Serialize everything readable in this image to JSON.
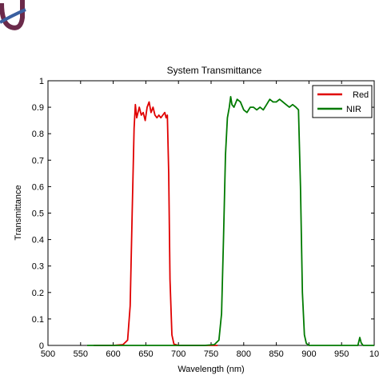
{
  "chart_data": {
    "type": "line",
    "title": "System Transmittance",
    "xlabel": "Wavelength (nm)",
    "ylabel": "Transmittance",
    "xlim": [
      500,
      1000
    ],
    "ylim": [
      0,
      1
    ],
    "xticks": [
      "500",
      "550",
      "600",
      "650",
      "700",
      "750",
      "800",
      "850",
      "900",
      "950",
      "10"
    ],
    "yticks": [
      "0",
      "0.1",
      "0.2",
      "0.3",
      "0.4",
      "0.5",
      "0.6",
      "0.7",
      "0.8",
      "0.9",
      "1"
    ],
    "grid": false,
    "legend_position": "top-right",
    "series": [
      {
        "name": "Red",
        "color": "#e00000",
        "x": [
          570,
          600,
          615,
          622,
          626,
          629,
          632,
          634,
          636,
          638,
          640,
          643,
          646,
          649,
          652,
          655,
          658,
          661,
          664,
          667,
          670,
          673,
          676,
          679,
          681,
          683,
          685,
          687,
          690,
          693,
          700,
          760
        ],
        "y": [
          0,
          0,
          0.003,
          0.02,
          0.15,
          0.5,
          0.82,
          0.91,
          0.86,
          0.88,
          0.9,
          0.87,
          0.88,
          0.85,
          0.9,
          0.92,
          0.88,
          0.9,
          0.87,
          0.86,
          0.87,
          0.86,
          0.87,
          0.88,
          0.86,
          0.87,
          0.65,
          0.25,
          0.04,
          0.005,
          0,
          0
        ]
      },
      {
        "name": "NIR",
        "color": "#007a00",
        "x": [
          560,
          740,
          755,
          762,
          766,
          769,
          772,
          775,
          778,
          780,
          782,
          785,
          790,
          795,
          800,
          805,
          810,
          815,
          820,
          825,
          830,
          835,
          840,
          845,
          850,
          855,
          860,
          865,
          870,
          875,
          880,
          884,
          887,
          890,
          893,
          896,
          900,
          905,
          960,
          975,
          978,
          980,
          983,
          990,
          1000
        ],
        "y": [
          0,
          0,
          0.003,
          0.02,
          0.12,
          0.4,
          0.72,
          0.86,
          0.9,
          0.94,
          0.91,
          0.9,
          0.93,
          0.92,
          0.89,
          0.88,
          0.9,
          0.9,
          0.89,
          0.9,
          0.89,
          0.91,
          0.93,
          0.92,
          0.92,
          0.93,
          0.92,
          0.91,
          0.9,
          0.91,
          0.9,
          0.89,
          0.6,
          0.2,
          0.04,
          0.008,
          0,
          0,
          0,
          0,
          0.03,
          0.01,
          0,
          0,
          0
        ]
      }
    ]
  }
}
